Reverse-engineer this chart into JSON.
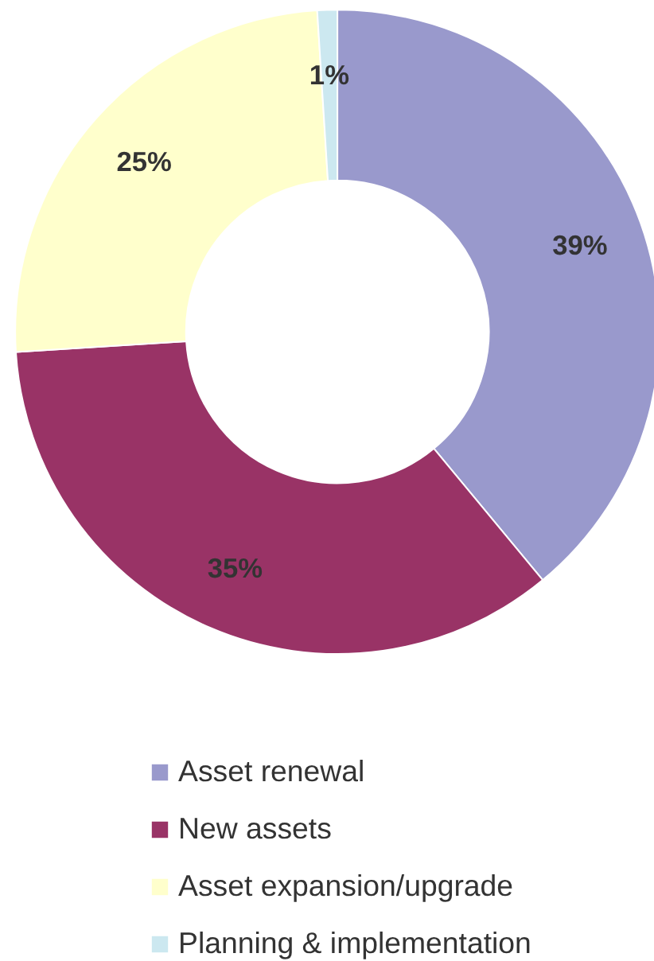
{
  "chart_data": {
    "type": "donut",
    "categories": [
      "Asset renewal",
      "New assets",
      "Asset expansion/upgrade",
      "Planning & implementation"
    ],
    "values": [
      39,
      35,
      25,
      1
    ],
    "colors": [
      "#9999cc",
      "#993366",
      "#ffffcc",
      "#cce8f0"
    ],
    "value_labels": [
      "39%",
      "35%",
      "25%",
      "1%"
    ],
    "legend": "bottom"
  }
}
